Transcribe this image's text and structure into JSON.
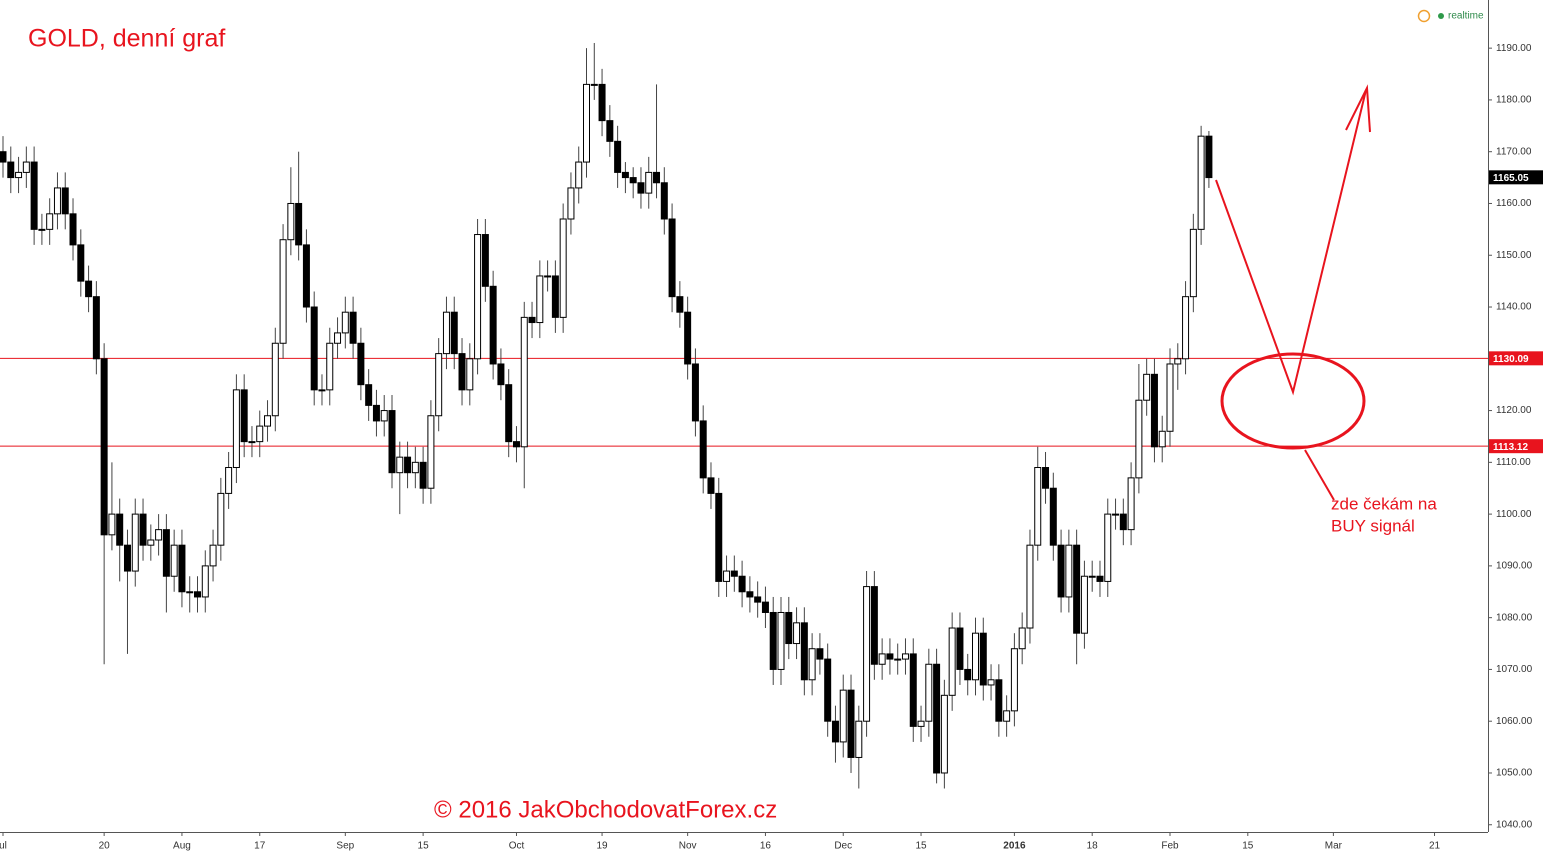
{
  "chart_data": {
    "type": "candlestick",
    "title": "GOLD, denní graf",
    "copyright": "© 2016 JakObchodovatForex.cz",
    "status": "realtime",
    "note": [
      "zde čekám na",
      "BUY signál"
    ],
    "categories": [
      "ul",
      null,
      null,
      null,
      null,
      null,
      null,
      null,
      null,
      null,
      null,
      null,
      null,
      "20",
      null,
      null,
      null,
      null,
      null,
      null,
      null,
      null,
      null,
      "Aug",
      null,
      null,
      null,
      null,
      null,
      null,
      null,
      null,
      null,
      "17",
      null,
      null,
      null,
      null,
      null,
      null,
      null,
      null,
      null,
      null,
      "Sep",
      null,
      null,
      null,
      null,
      null,
      null,
      null,
      null,
      null,
      "15",
      null,
      null,
      null,
      null,
      null,
      null,
      null,
      null,
      null,
      null,
      null,
      "Oct",
      null,
      null,
      null,
      null,
      null,
      null,
      null,
      null,
      null,
      null,
      "19",
      null,
      null,
      null,
      null,
      null,
      null,
      null,
      null,
      null,
      null,
      "Nov",
      null,
      null,
      null,
      null,
      null,
      null,
      null,
      null,
      null,
      "16",
      null,
      null,
      null,
      null,
      null,
      null,
      null,
      null,
      null,
      "Dec",
      null,
      null,
      null,
      null,
      null,
      null,
      null,
      null,
      null,
      "15",
      null,
      null,
      null,
      null,
      null,
      null,
      null,
      null,
      null,
      null,
      null,
      "2016",
      null,
      null,
      null,
      null,
      null,
      null,
      null,
      null,
      null,
      "18",
      null,
      null,
      null,
      null,
      null,
      null,
      null,
      null,
      null,
      "Feb",
      null,
      null,
      null,
      null,
      null,
      null,
      null,
      null,
      null,
      "15",
      null,
      null,
      null,
      null,
      null,
      null,
      null,
      null,
      null,
      null,
      "Mar",
      null,
      null,
      null,
      null,
      null,
      null,
      null,
      null,
      null,
      null,
      null,
      null,
      "21",
      null
    ],
    "open": [
      1170,
      1168,
      1165,
      1166,
      1168,
      1155,
      1155,
      1158,
      1163,
      1158,
      1152,
      1145,
      1142,
      1130,
      1096,
      1100,
      1094,
      1089,
      1100,
      1094,
      1095,
      1097,
      1088,
      1094,
      1085,
      1085,
      1084,
      1090,
      1094,
      1104,
      1109,
      1124,
      1114,
      1114,
      1117,
      1119,
      1133,
      1153,
      1160,
      1152,
      1140,
      1124,
      1124,
      1133,
      1135,
      1139,
      1133,
      1125,
      1121,
      1118,
      1120,
      1108,
      1111,
      1108,
      1110,
      1105,
      1119,
      1131,
      1139,
      1131,
      1124,
      1130,
      1154,
      1144,
      1129,
      1125,
      1114,
      1113,
      1138,
      1137,
      1146,
      1146,
      1138,
      1157,
      1163,
      1168,
      1183,
      1183,
      1176,
      1172,
      1166,
      1165,
      1164,
      1162,
      1166,
      1164,
      1157,
      1142,
      1139,
      1129,
      1118,
      1107,
      1104,
      1087,
      1089,
      1088,
      1085,
      1084,
      1083,
      1081,
      1070,
      1081,
      1075,
      1079,
      1068,
      1074,
      1072,
      1060,
      1056,
      1066,
      1053,
      1060,
      1086,
      1071,
      1073,
      1072,
      1072,
      1073,
      1059,
      1060,
      1071,
      1050,
      1065,
      1078,
      1070,
      1068,
      1077,
      1067,
      1068,
      1060,
      1062,
      1074,
      1078,
      1094,
      1109,
      1105,
      1094,
      1084,
      1094,
      1077,
      1088,
      1088,
      1087,
      1100,
      1100,
      1097,
      1107,
      1122,
      1127,
      1113,
      1116,
      1129,
      1130,
      1142,
      1155,
      1173,
      null,
      null,
      null,
      null,
      null,
      null,
      null,
      null,
      null,
      null,
      null,
      null,
      null,
      null,
      null,
      null,
      null,
      null,
      null,
      null,
      null,
      null,
      null,
      null,
      null,
      null,
      null,
      null,
      null,
      null
    ],
    "high": [
      1173,
      1171,
      1169,
      1171,
      1171,
      1158,
      1161,
      1166,
      1166,
      1161,
      1155,
      1148,
      1145,
      1133,
      1110,
      1103,
      1097,
      1103,
      1103,
      1098,
      1100,
      1100,
      1097,
      1097,
      1088,
      1088,
      1093,
      1097,
      1107,
      1112,
      1127,
      1127,
      1117,
      1120,
      1122,
      1136,
      1156,
      1167,
      1170,
      1155,
      1143,
      1127,
      1136,
      1138,
      1142,
      1142,
      1136,
      1128,
      1124,
      1123,
      1123,
      1114,
      1114,
      1113,
      1113,
      1122,
      1134,
      1142,
      1142,
      1134,
      1133,
      1157,
      1157,
      1147,
      1132,
      1128,
      1117,
      1141,
      1141,
      1149,
      1149,
      1149,
      1160,
      1166,
      1171,
      1190,
      1191,
      1186,
      1179,
      1175,
      1168,
      1167,
      1167,
      1169,
      1183,
      1167,
      1160,
      1145,
      1142,
      1132,
      1121,
      1110,
      1107,
      1092,
      1092,
      1091,
      1088,
      1087,
      1086,
      1084,
      1084,
      1084,
      1082,
      1082,
      1077,
      1077,
      1075,
      1063,
      1069,
      1069,
      1063,
      1089,
      1089,
      1076,
      1076,
      1075,
      1076,
      1076,
      1063,
      1074,
      1074,
      1068,
      1081,
      1081,
      1073,
      1080,
      1080,
      1071,
      1071,
      1065,
      1077,
      1081,
      1097,
      1113,
      1112,
      1108,
      1097,
      1097,
      1097,
      1091,
      1091,
      1091,
      1103,
      1103,
      1103,
      1110,
      1129,
      1130,
      1130,
      1119,
      1132,
      1133,
      1145,
      1158,
      1175,
      1174,
      null,
      null,
      null,
      null,
      null,
      null,
      null,
      null,
      null,
      null,
      null,
      null,
      null,
      null,
      null,
      null,
      null,
      null,
      null,
      null,
      null,
      null,
      null,
      null,
      null,
      null,
      null,
      null,
      null,
      null
    ],
    "low": [
      1165,
      1162,
      1162,
      1163,
      1152,
      1152,
      1152,
      1155,
      1155,
      1149,
      1142,
      1139,
      1127,
      1071,
      1093,
      1087,
      1073,
      1086,
      1091,
      1091,
      1092,
      1081,
      1085,
      1082,
      1081,
      1081,
      1081,
      1087,
      1091,
      1101,
      1106,
      1111,
      1111,
      1111,
      1114,
      1116,
      1130,
      1150,
      1149,
      1137,
      1121,
      1121,
      1121,
      1130,
      1132,
      1130,
      1122,
      1118,
      1115,
      1115,
      1105,
      1100,
      1105,
      1105,
      1102,
      1102,
      1116,
      1128,
      1128,
      1121,
      1121,
      1127,
      1141,
      1126,
      1122,
      1111,
      1110,
      1105,
      1134,
      1134,
      1143,
      1135,
      1135,
      1154,
      1160,
      1165,
      1180,
      1173,
      1169,
      1163,
      1162,
      1161,
      1159,
      1159,
      1161,
      1154,
      1139,
      1136,
      1126,
      1115,
      1104,
      1101,
      1084,
      1084,
      1085,
      1082,
      1081,
      1080,
      1078,
      1067,
      1067,
      1072,
      1072,
      1065,
      1065,
      1069,
      1057,
      1052,
      1053,
      1050,
      1047,
      1057,
      1068,
      1068,
      1069,
      1069,
      1069,
      1056,
      1056,
      1057,
      1048,
      1047,
      1062,
      1067,
      1065,
      1065,
      1064,
      1064,
      1057,
      1057,
      1059,
      1071,
      1075,
      1091,
      1102,
      1091,
      1081,
      1081,
      1071,
      1074,
      1085,
      1084,
      1084,
      1097,
      1094,
      1094,
      1104,
      1119,
      1110,
      1110,
      1113,
      1124,
      1127,
      1139,
      1152,
      1163,
      null,
      null,
      null,
      null,
      null,
      null,
      null,
      null,
      null,
      null,
      null,
      null,
      null,
      null,
      null,
      null,
      null,
      null,
      null,
      null,
      null,
      null,
      null,
      null,
      null,
      null,
      null,
      null,
      null,
      null
    ],
    "close": [
      1168,
      1165,
      1166,
      1168,
      1155,
      1155,
      1158,
      1163,
      1158,
      1152,
      1145,
      1142,
      1130,
      1096,
      1100,
      1094,
      1089,
      1100,
      1094,
      1095,
      1097,
      1088,
      1094,
      1085,
      1085,
      1084,
      1090,
      1094,
      1104,
      1109,
      1124,
      1114,
      1114,
      1117,
      1119,
      1133,
      1153,
      1160,
      1152,
      1140,
      1124,
      1124,
      1133,
      1135,
      1139,
      1133,
      1125,
      1121,
      1118,
      1120,
      1108,
      1111,
      1108,
      1110,
      1105,
      1119,
      1131,
      1139,
      1131,
      1124,
      1130,
      1154,
      1144,
      1129,
      1125,
      1114,
      1113,
      1138,
      1137,
      1146,
      1146,
      1138,
      1157,
      1163,
      1168,
      1183,
      1183,
      1176,
      1172,
      1166,
      1165,
      1164,
      1162,
      1166,
      1164,
      1157,
      1142,
      1139,
      1129,
      1118,
      1107,
      1104,
      1087,
      1089,
      1088,
      1085,
      1084,
      1083,
      1081,
      1070,
      1081,
      1075,
      1079,
      1068,
      1074,
      1072,
      1060,
      1056,
      1066,
      1053,
      1060,
      1086,
      1071,
      1073,
      1072,
      1072,
      1073,
      1059,
      1060,
      1071,
      1050,
      1065,
      1078,
      1070,
      1068,
      1077,
      1067,
      1068,
      1060,
      1062,
      1074,
      1078,
      1094,
      1109,
      1105,
      1094,
      1084,
      1094,
      1077,
      1088,
      1088,
      1087,
      1100,
      1100,
      1097,
      1107,
      1122,
      1127,
      1113,
      1116,
      1129,
      1130,
      1142,
      1155,
      1173,
      1165,
      null,
      null,
      null,
      null,
      null,
      null,
      null,
      null,
      null,
      null,
      null,
      null,
      null,
      null,
      null,
      null,
      null,
      null,
      null,
      null,
      null,
      null,
      null,
      null,
      null,
      null,
      null,
      null,
      null,
      null
    ],
    "ylim": [
      1038.6,
      1199.3
    ],
    "yticks": [
      {
        "value": 1040,
        "label": "1040.00"
      },
      {
        "value": 1050,
        "label": "1050.00"
      },
      {
        "value": 1060,
        "label": "1060.00"
      },
      {
        "value": 1070,
        "label": "1070.00"
      },
      {
        "value": 1080,
        "label": "1080.00"
      },
      {
        "value": 1090,
        "label": "1090.00"
      },
      {
        "value": 1100,
        "label": "1100.00"
      },
      {
        "value": 1110,
        "label": "1110.00"
      },
      {
        "value": 1120,
        "label": "1120.00"
      },
      {
        "value": 1130,
        "label": "1130.00"
      },
      {
        "value": 1140,
        "label": "1140.00"
      },
      {
        "value": 1150,
        "label": "1150.00"
      },
      {
        "value": 1160,
        "label": "1160.00"
      },
      {
        "value": 1170,
        "label": "1170.00"
      },
      {
        "value": 1180,
        "label": "1180.00"
      },
      {
        "value": 1190,
        "label": "1190.00"
      }
    ],
    "hlines": [
      1130.09,
      1113.12
    ],
    "hline_color": "#e8141e",
    "last_price": 1165.05,
    "up_color": "#ffffff",
    "down_color": "#000000"
  }
}
